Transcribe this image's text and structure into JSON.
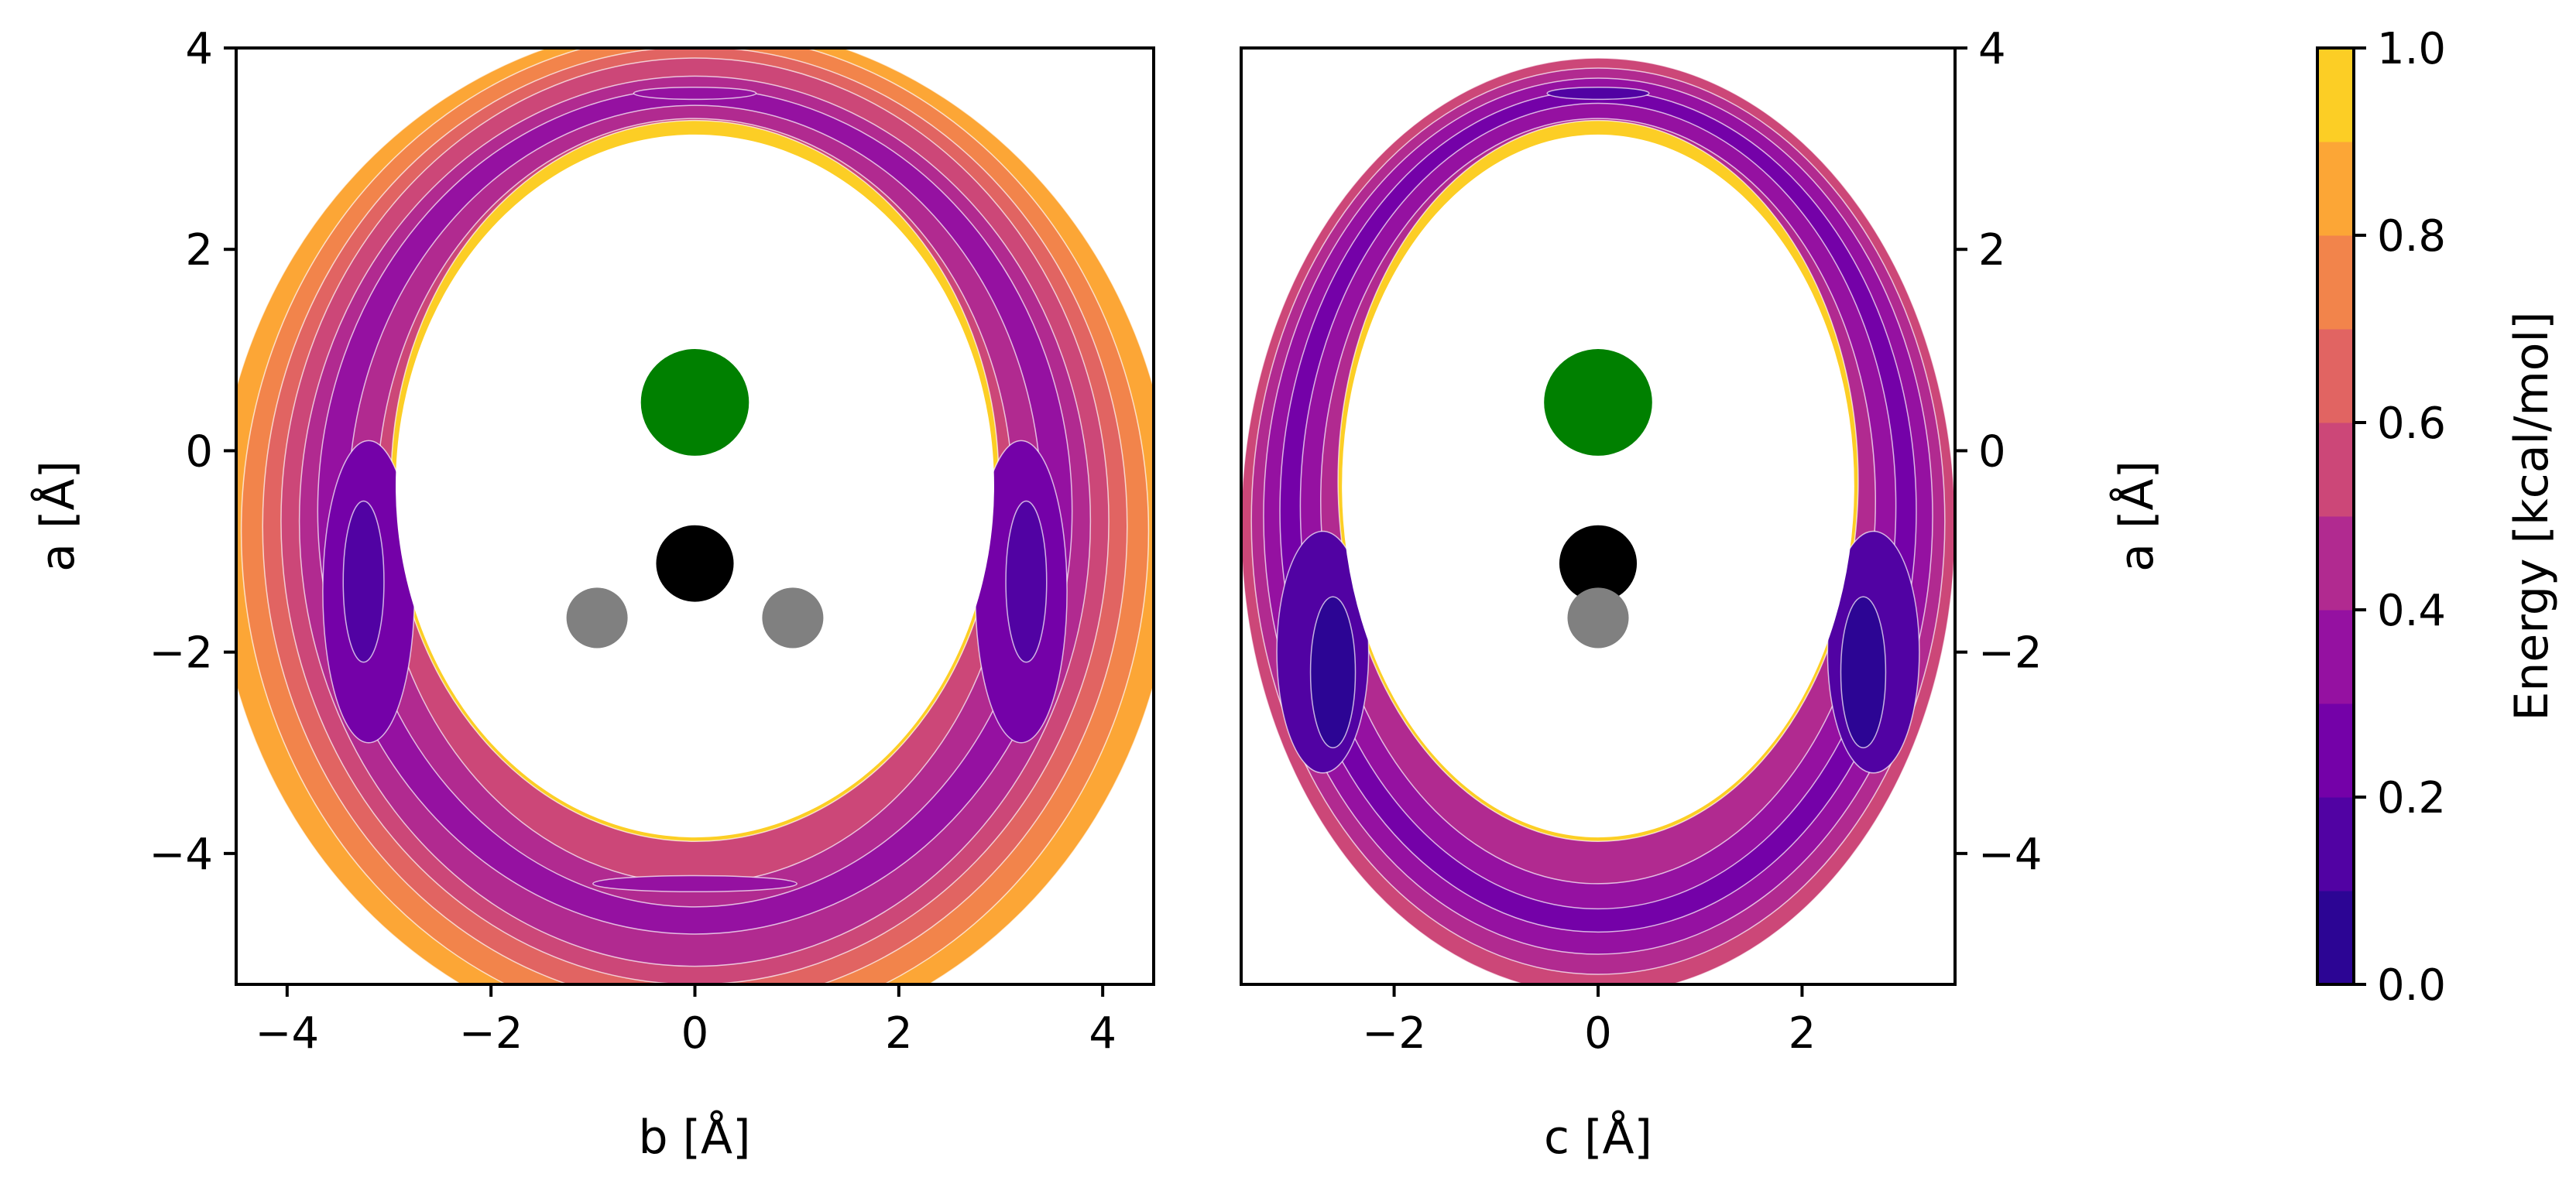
{
  "figure": {
    "panels": [
      {
        "id": "left",
        "xlabel": "b [Å]",
        "ylabel": "a [Å]",
        "xlim": [
          -4.5,
          4.5
        ],
        "ylim": [
          -5.3,
          4.0
        ],
        "xticks": [
          -4,
          -2,
          0,
          2,
          4
        ],
        "yticks": [
          -4,
          -2,
          0,
          2,
          4
        ],
        "ytick_side": "left"
      },
      {
        "id": "right",
        "xlabel": "c [Å]",
        "ylabel": "a [Å]",
        "xlim": [
          -3.5,
          3.5
        ],
        "ylim": [
          -5.3,
          4.0
        ],
        "xticks": [
          -2,
          0,
          2
        ],
        "yticks": [
          -4,
          -2,
          0,
          2,
          4
        ],
        "ytick_side": "right"
      }
    ],
    "colorbar": {
      "label": "Energy [kcal/mol]",
      "ticks": [
        0.0,
        0.2,
        0.4,
        0.6,
        0.8,
        1.0
      ],
      "tick_labels": [
        "0.0",
        "0.2",
        "0.4",
        "0.6",
        "0.8",
        "1.0"
      ],
      "levels": [
        0.0,
        0.1,
        0.2,
        0.3,
        0.4,
        0.5,
        0.6,
        0.7,
        0.8,
        0.9,
        1.0
      ],
      "colors": [
        "#2c0594",
        "#5102a3",
        "#7401a8",
        "#9511a1",
        "#b12a90",
        "#cc4778",
        "#e16462",
        "#f2844b",
        "#fca636",
        "#fcce25"
      ],
      "cmap": "plasma"
    }
  },
  "chart_data": [
    {
      "type": "contour",
      "panel": "left",
      "title": "",
      "xlabel": "b [Å]",
      "ylabel": "a [Å]",
      "xlim": [
        -4.5,
        4.5
      ],
      "ylim": [
        -5.3,
        4.0
      ],
      "grid": false,
      "note": "Filled energy contours (0–1 kcal/mol) forming a ring around an excluded (white) region; minima on the sides.",
      "rings": [
        {
          "level": 0.95,
          "color": "#fcce25",
          "cx": 0.0,
          "cy": -0.3,
          "rx": 2.98,
          "ry": 3.58
        },
        {
          "level": 0.55,
          "color": "#cc4778",
          "cx": 0.0,
          "cy": -0.5,
          "rx": 3.12,
          "ry": 3.8
        },
        {
          "level": 0.45,
          "color": "#b12a90",
          "cx": 0.0,
          "cy": -0.55,
          "rx": 3.4,
          "ry": 3.98
        },
        {
          "level": 0.35,
          "color": "#9511a1",
          "cx": 0.0,
          "cy": -0.6,
          "rx": 3.7,
          "ry": 4.2
        },
        {
          "level": 0.45,
          "color": "#b12a90",
          "cx": 0.0,
          "cy": -0.7,
          "rx": 3.88,
          "ry": 4.42
        },
        {
          "level": 0.55,
          "color": "#cc4778",
          "cx": 0.0,
          "cy": -0.7,
          "rx": 4.06,
          "ry": 4.6
        },
        {
          "level": 0.65,
          "color": "#e16462",
          "cx": 0.0,
          "cy": -0.75,
          "rx": 4.24,
          "ry": 4.76
        },
        {
          "level": 0.75,
          "color": "#f2844b",
          "cx": 0.0,
          "cy": -0.8,
          "rx": 4.45,
          "ry": 4.95
        },
        {
          "level": 0.85,
          "color": "#fca636",
          "cx": 0.0,
          "cy": -0.85,
          "rx": 4.7,
          "ry": 5.1
        }
      ],
      "minima": [
        {
          "level": 0.25,
          "color": "#7401a8",
          "cx": -3.2,
          "cy": -1.4,
          "rx": 0.45,
          "ry": 1.5
        },
        {
          "level": 0.25,
          "color": "#7401a8",
          "cx": 3.2,
          "cy": -1.4,
          "rx": 0.45,
          "ry": 1.5
        },
        {
          "level": 0.15,
          "color": "#5102a3",
          "cx": -3.25,
          "cy": -1.3,
          "rx": 0.2,
          "ry": 0.8
        },
        {
          "level": 0.15,
          "color": "#5102a3",
          "cx": 3.25,
          "cy": -1.3,
          "rx": 0.2,
          "ry": 0.8
        },
        {
          "level": 0.3,
          "color": "#9511a1",
          "cx": 0.0,
          "cy": -4.3,
          "rx": 1.0,
          "ry": 0.08
        },
        {
          "level": 0.3,
          "color": "#9511a1",
          "cx": 0.0,
          "cy": 3.55,
          "rx": 0.6,
          "ry": 0.06
        }
      ],
      "atoms": [
        {
          "element": "green",
          "color": "#008000",
          "x": 0.0,
          "y": 0.48,
          "r": 0.53
        },
        {
          "element": "black",
          "color": "#000000",
          "x": 0.0,
          "y": -1.12,
          "r": 0.38
        },
        {
          "element": "grey",
          "color": "#808080",
          "x": -0.96,
          "y": -1.66,
          "r": 0.3
        },
        {
          "element": "grey",
          "color": "#808080",
          "x": 0.96,
          "y": -1.66,
          "r": 0.3
        }
      ]
    },
    {
      "type": "contour",
      "panel": "right",
      "title": "",
      "xlabel": "c [Å]",
      "ylabel": "a [Å]",
      "xlim": [
        -3.5,
        3.5
      ],
      "ylim": [
        -5.3,
        4.0
      ],
      "grid": false,
      "note": "Filled energy contours (0–1 kcal/mol) around an excluded (white) region; deepest minima lower-left and lower-right.",
      "rings": [
        {
          "level": 0.95,
          "color": "#fcce25",
          "cx": 0.0,
          "cy": -0.3,
          "rx": 2.55,
          "ry": 3.58
        },
        {
          "level": 0.45,
          "color": "#b12a90",
          "cx": 0.0,
          "cy": -0.5,
          "rx": 2.72,
          "ry": 3.8
        },
        {
          "level": 0.35,
          "color": "#9511a1",
          "cx": 0.0,
          "cy": -0.55,
          "rx": 2.92,
          "ry": 4.0
        },
        {
          "level": 0.25,
          "color": "#7401a8",
          "cx": 0.0,
          "cy": -0.6,
          "rx": 3.12,
          "ry": 4.18
        },
        {
          "level": 0.35,
          "color": "#9511a1",
          "cx": 0.0,
          "cy": -0.65,
          "rx": 3.28,
          "ry": 4.35
        },
        {
          "level": 0.45,
          "color": "#b12a90",
          "cx": 0.0,
          "cy": -0.7,
          "rx": 3.4,
          "ry": 4.5
        },
        {
          "level": 0.55,
          "color": "#cc4778",
          "cx": 0.0,
          "cy": -0.75,
          "rx": 3.5,
          "ry": 4.65
        }
      ],
      "minima": [
        {
          "level": 0.15,
          "color": "#5102a3",
          "cx": -2.7,
          "cy": -2.0,
          "rx": 0.45,
          "ry": 1.2
        },
        {
          "level": 0.15,
          "color": "#5102a3",
          "cx": 2.7,
          "cy": -2.0,
          "rx": 0.45,
          "ry": 1.2
        },
        {
          "level": 0.05,
          "color": "#2c0594",
          "cx": -2.6,
          "cy": -2.2,
          "rx": 0.22,
          "ry": 0.75
        },
        {
          "level": 0.05,
          "color": "#2c0594",
          "cx": 2.6,
          "cy": -2.2,
          "rx": 0.22,
          "ry": 0.75
        },
        {
          "level": 0.2,
          "color": "#5102a3",
          "cx": 0.0,
          "cy": 3.55,
          "rx": 0.5,
          "ry": 0.06
        }
      ],
      "atoms": [
        {
          "element": "green",
          "color": "#008000",
          "x": 0.0,
          "y": 0.48,
          "r": 0.53
        },
        {
          "element": "black",
          "color": "#000000",
          "x": 0.0,
          "y": -1.12,
          "r": 0.38
        },
        {
          "element": "grey",
          "color": "#808080",
          "x": 0.0,
          "y": -1.66,
          "r": 0.3
        }
      ]
    }
  ]
}
